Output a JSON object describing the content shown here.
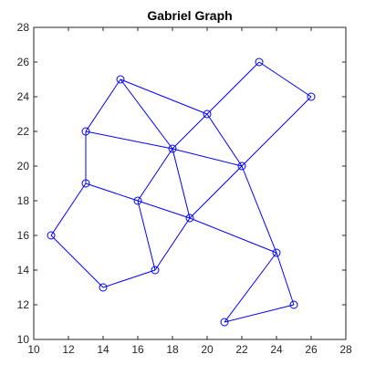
{
  "chart_data": {
    "type": "scatter",
    "title": "Gabriel Graph",
    "xlabel": "",
    "ylabel": "",
    "xlim": [
      10,
      28
    ],
    "ylim": [
      10,
      28
    ],
    "xticks": [
      10,
      12,
      14,
      16,
      18,
      20,
      22,
      24,
      26,
      28
    ],
    "yticks": [
      10,
      12,
      14,
      16,
      18,
      20,
      22,
      24,
      26,
      28
    ],
    "grid": false,
    "marker": "circle",
    "color": "#0000ff",
    "axis_color": "#262626",
    "nodes": [
      {
        "x": 11,
        "y": 16
      },
      {
        "x": 13,
        "y": 19
      },
      {
        "x": 13,
        "y": 22
      },
      {
        "x": 14,
        "y": 13
      },
      {
        "x": 15,
        "y": 25
      },
      {
        "x": 16,
        "y": 18
      },
      {
        "x": 17,
        "y": 14
      },
      {
        "x": 18,
        "y": 21
      },
      {
        "x": 19,
        "y": 17
      },
      {
        "x": 20,
        "y": 23
      },
      {
        "x": 21,
        "y": 11
      },
      {
        "x": 22,
        "y": 20
      },
      {
        "x": 23,
        "y": 26
      },
      {
        "x": 24,
        "y": 15
      },
      {
        "x": 25,
        "y": 12
      },
      {
        "x": 26,
        "y": 24
      }
    ],
    "edges": [
      [
        0,
        1
      ],
      [
        0,
        3
      ],
      [
        1,
        2
      ],
      [
        1,
        5
      ],
      [
        2,
        4
      ],
      [
        2,
        7
      ],
      [
        3,
        6
      ],
      [
        4,
        7
      ],
      [
        4,
        9
      ],
      [
        5,
        6
      ],
      [
        5,
        7
      ],
      [
        5,
        8
      ],
      [
        6,
        8
      ],
      [
        7,
        8
      ],
      [
        7,
        9
      ],
      [
        7,
        11
      ],
      [
        8,
        11
      ],
      [
        8,
        13
      ],
      [
        9,
        11
      ],
      [
        9,
        12
      ],
      [
        10,
        13
      ],
      [
        10,
        14
      ],
      [
        11,
        13
      ],
      [
        11,
        15
      ],
      [
        12,
        15
      ],
      [
        13,
        14
      ]
    ]
  }
}
